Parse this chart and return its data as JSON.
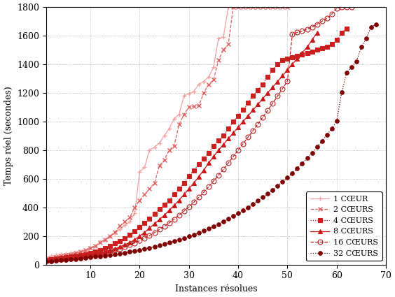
{
  "xlabel": "Instances résolues",
  "ylabel": "Temps réel (secondes)",
  "xlim": [
    1,
    70
  ],
  "ylim": [
    0,
    1800
  ],
  "xticks": [
    10,
    20,
    30,
    40,
    50,
    60,
    70
  ],
  "yticks": [
    0,
    200,
    400,
    600,
    800,
    1000,
    1200,
    1400,
    1600,
    1800
  ],
  "series": [
    {
      "label": "1 CŒUR",
      "color": "#f5a0a0",
      "linestyle": "-",
      "marker": "+",
      "markersize": 5,
      "markeredgewidth": 1.0,
      "linewidth": 0.9,
      "x": [
        1,
        2,
        3,
        4,
        5,
        6,
        7,
        8,
        9,
        10,
        11,
        12,
        13,
        14,
        15,
        16,
        17,
        18,
        19,
        20,
        21,
        22,
        23,
        24,
        25,
        26,
        27,
        28,
        29,
        30,
        31,
        32,
        33,
        34,
        35,
        36,
        37,
        38,
        39
      ],
      "y": [
        50,
        60,
        65,
        70,
        75,
        80,
        85,
        90,
        100,
        120,
        130,
        160,
        175,
        200,
        220,
        250,
        275,
        300,
        360,
        650,
        680,
        800,
        820,
        850,
        900,
        950,
        1020,
        1050,
        1180,
        1195,
        1210,
        1260,
        1280,
        1310,
        1380,
        1580,
        1590,
        1800,
        1800
      ]
    },
    {
      "label": "2 CŒURS",
      "color": "#e06060",
      "linestyle": "--",
      "marker": "x",
      "markersize": 5,
      "markeredgewidth": 1.0,
      "linewidth": 0.9,
      "x": [
        1,
        2,
        3,
        4,
        5,
        6,
        7,
        8,
        9,
        10,
        11,
        12,
        13,
        14,
        15,
        16,
        17,
        18,
        19,
        20,
        21,
        22,
        23,
        24,
        25,
        26,
        27,
        28,
        29,
        30,
        31,
        32,
        33,
        34,
        35,
        36,
        37,
        38,
        39,
        40,
        41,
        42,
        43,
        44,
        45,
        46,
        47,
        48,
        49,
        50
      ],
      "y": [
        40,
        45,
        50,
        60,
        65,
        70,
        80,
        90,
        100,
        115,
        130,
        155,
        175,
        200,
        230,
        270,
        300,
        330,
        400,
        450,
        490,
        530,
        570,
        690,
        730,
        800,
        830,
        980,
        1050,
        1100,
        1105,
        1110,
        1200,
        1260,
        1290,
        1430,
        1500,
        1540,
        1800,
        1800,
        1800,
        1800,
        1800,
        1800,
        1800,
        1800,
        1800,
        1800,
        1800,
        1800
      ]
    },
    {
      "label": "4 CŒURS",
      "color": "#cc2020",
      "linestyle": ":",
      "marker": "s",
      "markersize": 4,
      "markeredgewidth": 0.8,
      "linewidth": 0.9,
      "x": [
        1,
        2,
        3,
        4,
        5,
        6,
        7,
        8,
        9,
        10,
        11,
        12,
        13,
        14,
        15,
        16,
        17,
        18,
        19,
        20,
        21,
        22,
        23,
        24,
        25,
        26,
        27,
        28,
        29,
        30,
        31,
        32,
        33,
        34,
        35,
        36,
        37,
        38,
        39,
        40,
        41,
        42,
        43,
        44,
        45,
        46,
        47,
        48,
        49,
        50,
        51,
        52,
        53,
        54,
        55,
        56,
        57,
        58,
        59,
        60,
        61,
        62
      ],
      "y": [
        35,
        38,
        42,
        46,
        50,
        55,
        60,
        65,
        70,
        80,
        90,
        100,
        115,
        130,
        150,
        165,
        185,
        210,
        235,
        260,
        290,
        320,
        355,
        390,
        420,
        450,
        490,
        530,
        570,
        620,
        660,
        700,
        740,
        780,
        830,
        870,
        900,
        950,
        1000,
        1040,
        1080,
        1130,
        1180,
        1220,
        1260,
        1310,
        1360,
        1400,
        1430,
        1440,
        1450,
        1460,
        1470,
        1480,
        1490,
        1500,
        1510,
        1520,
        1540,
        1570,
        1620,
        1650
      ]
    },
    {
      "label": "8 CŒURS",
      "color": "#cc1515",
      "linestyle": "-",
      "marker": "^",
      "markersize": 5,
      "markeredgewidth": 0.8,
      "linewidth": 0.9,
      "x": [
        1,
        2,
        3,
        4,
        5,
        6,
        7,
        8,
        9,
        10,
        11,
        12,
        13,
        14,
        15,
        16,
        17,
        18,
        19,
        20,
        21,
        22,
        23,
        24,
        25,
        26,
        27,
        28,
        29,
        30,
        31,
        32,
        33,
        34,
        35,
        36,
        37,
        38,
        39,
        40,
        41,
        42,
        43,
        44,
        45,
        46,
        47,
        48,
        49,
        50,
        51,
        52,
        53,
        54,
        55,
        56
      ],
      "y": [
        30,
        33,
        36,
        40,
        44,
        48,
        52,
        57,
        62,
        68,
        75,
        82,
        90,
        100,
        110,
        125,
        140,
        155,
        175,
        200,
        225,
        255,
        285,
        315,
        345,
        380,
        415,
        450,
        490,
        530,
        570,
        615,
        660,
        710,
        755,
        800,
        840,
        880,
        920,
        960,
        1000,
        1040,
        1080,
        1120,
        1160,
        1200,
        1240,
        1280,
        1320,
        1360,
        1400,
        1440,
        1480,
        1520,
        1570,
        1620
      ]
    },
    {
      "label": "16 CŒURS",
      "color": "#bb2222",
      "linestyle": "--",
      "marker": "o",
      "markersize": 5,
      "markeredgewidth": 0.8,
      "markerfacecolor": "none",
      "linewidth": 0.9,
      "x": [
        1,
        2,
        3,
        4,
        5,
        6,
        7,
        8,
        9,
        10,
        11,
        12,
        13,
        14,
        15,
        16,
        17,
        18,
        19,
        20,
        21,
        22,
        23,
        24,
        25,
        26,
        27,
        28,
        29,
        30,
        31,
        32,
        33,
        34,
        35,
        36,
        37,
        38,
        39,
        40,
        41,
        42,
        43,
        44,
        45,
        46,
        47,
        48,
        49,
        50,
        51,
        52,
        53,
        54,
        55,
        56,
        57,
        58,
        59,
        60,
        61,
        62,
        63
      ],
      "y": [
        28,
        30,
        33,
        36,
        40,
        44,
        48,
        52,
        56,
        62,
        68,
        74,
        82,
        90,
        100,
        112,
        124,
        138,
        152,
        168,
        186,
        204,
        224,
        246,
        268,
        292,
        318,
        346,
        374,
        405,
        436,
        470,
        506,
        544,
        584,
        624,
        666,
        710,
        755,
        800,
        845,
        890,
        936,
        982,
        1030,
        1078,
        1128,
        1178,
        1230,
        1282,
        1612,
        1622,
        1632,
        1645,
        1660,
        1680,
        1700,
        1720,
        1750,
        1790,
        1800,
        1800,
        1800
      ]
    },
    {
      "label": "32 CŒURS",
      "color": "#800000",
      "linestyle": ":",
      "marker": "o",
      "markersize": 4,
      "markeredgewidth": 0.8,
      "linewidth": 0.9,
      "x": [
        1,
        2,
        3,
        4,
        5,
        6,
        7,
        8,
        9,
        10,
        11,
        12,
        13,
        14,
        15,
        16,
        17,
        18,
        19,
        20,
        21,
        22,
        23,
        24,
        25,
        26,
        27,
        28,
        29,
        30,
        31,
        32,
        33,
        34,
        35,
        36,
        37,
        38,
        39,
        40,
        41,
        42,
        43,
        44,
        45,
        46,
        47,
        48,
        49,
        50,
        51,
        52,
        53,
        54,
        55,
        56,
        57,
        58,
        59,
        60,
        61,
        62,
        63,
        64,
        65,
        66,
        67,
        68
      ],
      "y": [
        22,
        25,
        28,
        31,
        34,
        37,
        40,
        44,
        47,
        51,
        55,
        59,
        63,
        68,
        72,
        78,
        84,
        90,
        96,
        103,
        110,
        118,
        126,
        134,
        143,
        153,
        163,
        174,
        185,
        197,
        210,
        223,
        237,
        252,
        268,
        284,
        301,
        319,
        338,
        358,
        378,
        400,
        422,
        446,
        470,
        495,
        522,
        550,
        578,
        608,
        640,
        673,
        708,
        744,
        782,
        822,
        863,
        906,
        953,
        1002,
        1202,
        1340,
        1380,
        1420,
        1520,
        1580,
        1660,
        1680
      ]
    }
  ],
  "legend_loc": "lower right",
  "background_color": "#ffffff",
  "font_family": "serif"
}
